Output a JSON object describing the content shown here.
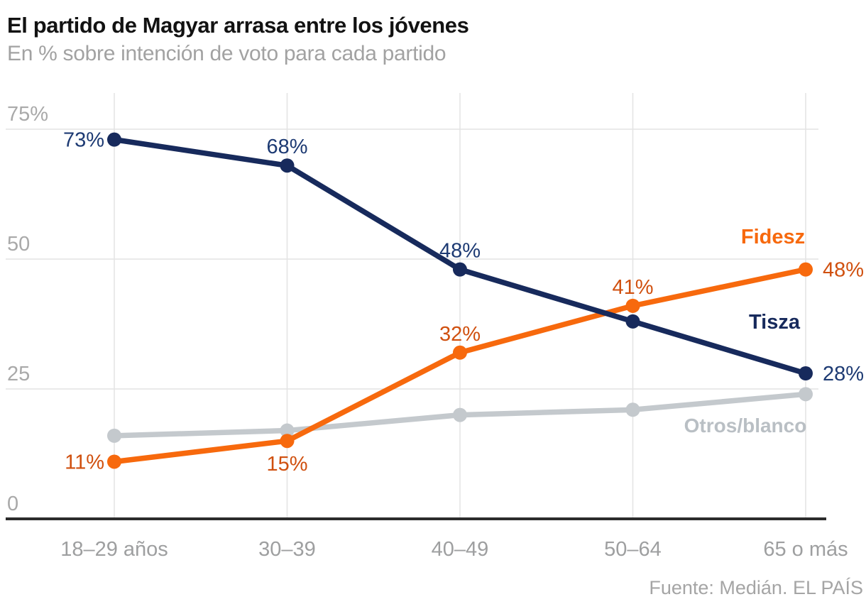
{
  "header": {
    "title": "El partido de Magyar arrasa entre los jóvenes",
    "subtitle": "En % sobre intención de voto para cada partido"
  },
  "footer": {
    "source": "Fuente: Medián. EL PAÍS"
  },
  "chart_data": {
    "type": "line",
    "title": "El partido de Magyar arrasa entre los jóvenes",
    "subtitle": "En % sobre intención de voto para cada partido",
    "source": "Fuente: Medián. EL PAÍS",
    "unit": "%",
    "categories": [
      "18–29 años",
      "30–39",
      "40–49",
      "50–64",
      "65 o más"
    ],
    "ylim": [
      0,
      82
    ],
    "grid": "horizontal-and-vertical",
    "legend_position": "inline-right",
    "yticks": [
      {
        "value": 0,
        "label": "0"
      },
      {
        "value": 25,
        "label": "25"
      },
      {
        "value": 50,
        "label": "50"
      },
      {
        "value": 75,
        "label": "75%"
      }
    ],
    "colors": {
      "grid": "#e4e4e4",
      "axis": "#2c2c2c",
      "tisza_line": "#172a5c",
      "tisza_label": "#1d3a73",
      "fidesz_line": "#f7690d",
      "fidesz_label": "#d0500f",
      "otros_line": "#c4c9cd",
      "otros_label": "#b9bfc4"
    },
    "series": [
      {
        "name": "Otros/blanco",
        "color": "#c4c9cd",
        "label_color": "#b9bfc4",
        "values": [
          16,
          17,
          20,
          21,
          24
        ],
        "point_labels": []
      },
      {
        "name": "Fidesz",
        "color": "#f7690d",
        "label_color": "#d0500f",
        "values": [
          11,
          15,
          32,
          41,
          48
        ],
        "point_labels": [
          {
            "index": 0,
            "text": "11%",
            "position": "left"
          },
          {
            "index": 1,
            "text": "15%",
            "position": "below"
          },
          {
            "index": 2,
            "text": "32%",
            "position": "above"
          },
          {
            "index": 3,
            "text": "41%",
            "position": "above"
          },
          {
            "index": 4,
            "text": "48%",
            "position": "right"
          }
        ]
      },
      {
        "name": "Tisza",
        "color": "#172a5c",
        "label_color": "#1d3a73",
        "values": [
          73,
          68,
          48,
          38,
          28
        ],
        "point_labels": [
          {
            "index": 0,
            "text": "73%",
            "position": "left"
          },
          {
            "index": 1,
            "text": "68%",
            "position": "above"
          },
          {
            "index": 2,
            "text": "48%",
            "position": "above"
          },
          {
            "index": 4,
            "text": "28%",
            "position": "right"
          }
        ]
      }
    ]
  }
}
